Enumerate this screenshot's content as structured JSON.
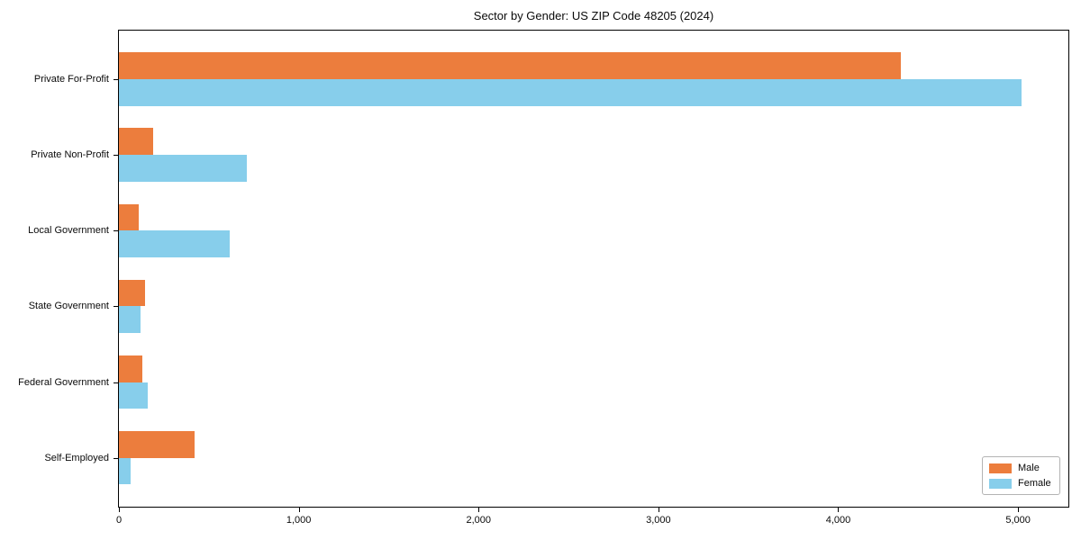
{
  "chart_data": {
    "type": "bar",
    "orientation": "horizontal",
    "title": "Sector by Gender: US ZIP Code 48205 (2024)",
    "categories": [
      "Private For-Profit",
      "Private Non-Profit",
      "Local Government",
      "State Government",
      "Federal Government",
      "Self-Employed"
    ],
    "series": [
      {
        "name": "Male",
        "color": "#ec7d3d",
        "values": [
          4350,
          190,
          110,
          145,
          130,
          420
        ]
      },
      {
        "name": "Female",
        "color": "#87ceeb",
        "values": [
          5020,
          710,
          615,
          120,
          160,
          65
        ]
      }
    ],
    "xlim": [
      0,
      5280
    ],
    "x_ticks": [
      0,
      1000,
      2000,
      3000,
      4000,
      5000
    ],
    "x_tick_labels": [
      "0",
      "1,000",
      "2,000",
      "3,000",
      "4,000",
      "5,000"
    ],
    "xlabel": "",
    "ylabel": "",
    "grid": false,
    "legend_position": "lower right",
    "spine_color": "#000000",
    "text_color": "#0a0a0a"
  }
}
